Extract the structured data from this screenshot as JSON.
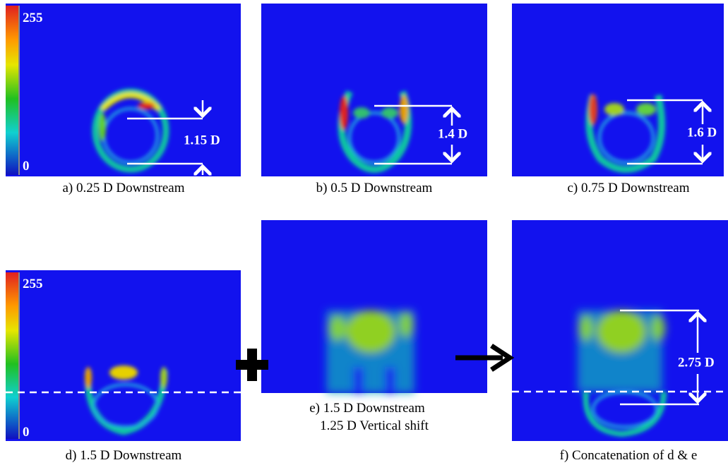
{
  "colorbar": {
    "max_label": "255",
    "min_label": "0"
  },
  "panels": [
    {
      "caption": "a) 0.25 D Downstream",
      "annotation": "1.15 D"
    },
    {
      "caption": "b) 0.5 D Downstream",
      "annotation": "1.4 D"
    },
    {
      "caption": "c) 0.75 D Downstream",
      "annotation": "1.6 D"
    },
    {
      "caption": "d) 1.5 D Downstream"
    },
    {
      "caption": [
        "e) 1.5 D Downstream",
        "1.25 D Vertical  shift"
      ]
    },
    {
      "caption": "f) Concatenation  of d & e",
      "annotation": "2.75 D"
    }
  ]
}
